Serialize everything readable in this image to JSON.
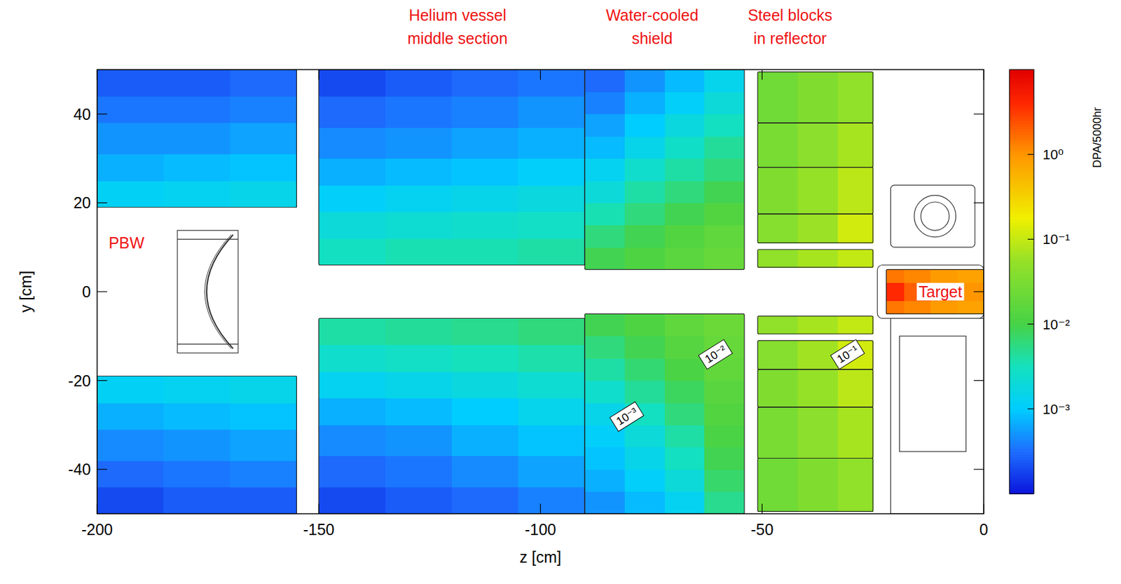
{
  "chart_data": {
    "type": "heatmap",
    "x_label": "z [cm]",
    "y_label": "y [cm]",
    "xlim": [
      -200,
      0
    ],
    "ylim": [
      -50,
      50
    ],
    "xticks": [
      -200,
      -150,
      -100,
      -50,
      0
    ],
    "yticks": [
      -40,
      -20,
      0,
      20,
      40
    ],
    "colorbar": {
      "label": "DPA/5000hr",
      "log": true,
      "lim": [
        0.0001,
        10
      ],
      "ticks": [
        {
          "value": 0.001,
          "label": "10⁻³"
        },
        {
          "value": 0.01,
          "label": "10⁻²"
        },
        {
          "value": 0.1,
          "label": "10⁻¹"
        },
        {
          "value": 1,
          "label": "10⁰"
        }
      ]
    },
    "annotations": [
      {
        "text": "Helium vessel middle section",
        "z": -118.7
      },
      {
        "text": "Water-cooled shield",
        "z": -74.8
      },
      {
        "text": "Steel blocks in reflector",
        "z": -43.7
      }
    ],
    "labels": [
      {
        "text": "PBW",
        "z": -197.4,
        "y": 11
      },
      {
        "text": "Target",
        "z": -14.7,
        "y": 0
      }
    ],
    "contour_labels": [
      {
        "value": 0.01,
        "label": "10⁻²",
        "z": -60.6,
        "y": -14
      },
      {
        "value": 0.1,
        "label": "10⁻¹",
        "z": -30.8,
        "y": -14
      },
      {
        "value": 0.001,
        "label": "10⁻³",
        "z": -80.6,
        "y": -28
      }
    ],
    "cells": [
      {
        "z": [
          -200,
          -185,
          -170,
          -155
        ],
        "y": [
          19,
          25,
          31,
          38,
          44,
          50
        ],
        "values": [
          [
            0.0012,
            0.0013,
            0.0015
          ],
          [
            0.0007,
            0.0008,
            0.0009
          ],
          [
            0.0005,
            0.0005,
            0.0006
          ],
          [
            0.00035,
            0.00035,
            0.0004
          ],
          [
            0.00025,
            0.00025,
            0.0003
          ]
        ]
      },
      {
        "z": [
          -200,
          -185,
          -170,
          -155
        ],
        "y": [
          -50,
          -44,
          -38,
          -31,
          -25,
          -19
        ],
        "values": [
          [
            0.0002,
            0.00025,
            0.00025
          ],
          [
            0.0003,
            0.00035,
            0.0004
          ],
          [
            0.00045,
            0.0005,
            0.0006
          ],
          [
            0.0007,
            0.0008,
            0.0009
          ],
          [
            0.0012,
            0.0013,
            0.0015
          ]
        ]
      },
      {
        "z": [
          -150,
          -135,
          -120,
          -105,
          -90
        ],
        "y": [
          6,
          12,
          18,
          24,
          30,
          37,
          44,
          50
        ],
        "values": [
          [
            0.003,
            0.0035,
            0.0035,
            0.004
          ],
          [
            0.002,
            0.0022,
            0.0025,
            0.0028
          ],
          [
            0.0011,
            0.0013,
            0.0015,
            0.0018
          ],
          [
            0.0007,
            0.0008,
            0.0009,
            0.0011
          ],
          [
            0.00045,
            0.0005,
            0.0006,
            0.0007
          ],
          [
            0.0003,
            0.00035,
            0.0004,
            0.0005
          ],
          [
            0.0002,
            0.00025,
            0.0003,
            0.00035
          ]
        ]
      },
      {
        "z": [
          -150,
          -135,
          -120,
          -105,
          -90
        ],
        "y": [
          -50,
          -44,
          -37,
          -30,
          -24,
          -18,
          -12,
          -6
        ],
        "values": [
          [
            0.0002,
            0.00025,
            0.0003,
            0.0004
          ],
          [
            0.0003,
            0.00035,
            0.00045,
            0.0006
          ],
          [
            0.00045,
            0.0005,
            0.0007,
            0.0009
          ],
          [
            0.0007,
            0.0008,
            0.001,
            0.0014
          ],
          [
            0.0013,
            0.0015,
            0.0018,
            0.0022
          ],
          [
            0.0025,
            0.0028,
            0.0032,
            0.0038
          ],
          [
            0.004,
            0.0045,
            0.005,
            0.006
          ]
        ]
      },
      {
        "z": [
          -90,
          -81,
          -72,
          -63,
          -54
        ],
        "y": [
          5,
          10,
          15,
          20,
          25,
          30,
          35,
          40,
          45,
          50
        ],
        "values": [
          [
            0.009,
            0.012,
            0.016,
            0.02
          ],
          [
            0.006,
            0.009,
            0.013,
            0.017
          ],
          [
            0.0035,
            0.006,
            0.009,
            0.013
          ],
          [
            0.002,
            0.004,
            0.006,
            0.009
          ],
          [
            0.0013,
            0.0025,
            0.004,
            0.006
          ],
          [
            0.0008,
            0.0015,
            0.0027,
            0.0045
          ],
          [
            0.0006,
            0.001,
            0.0018,
            0.003
          ],
          [
            0.0004,
            0.0007,
            0.0011,
            0.002
          ],
          [
            0.0003,
            0.0005,
            0.0008,
            0.0014
          ]
        ]
      },
      {
        "z": [
          -90,
          -81,
          -72,
          -63,
          -54
        ],
        "y": [
          -50,
          -45,
          -40,
          -35,
          -30,
          -25,
          -20,
          -15,
          -10,
          -5
        ],
        "values": [
          [
            0.0005,
            0.0008,
            0.0013,
            0.005
          ],
          [
            0.0007,
            0.0011,
            0.002,
            0.007
          ],
          [
            0.0009,
            0.0015,
            0.003,
            0.009
          ],
          [
            0.0011,
            0.002,
            0.004,
            0.011
          ],
          [
            0.0015,
            0.003,
            0.006,
            0.013
          ],
          [
            0.0025,
            0.0045,
            0.008,
            0.015
          ],
          [
            0.004,
            0.0065,
            0.011,
            0.018
          ],
          [
            0.006,
            0.009,
            0.014,
            0.02
          ],
          [
            0.009,
            0.012,
            0.017,
            0.022
          ]
        ]
      },
      {
        "z": [
          -51,
          -42,
          -33,
          -25
        ],
        "y": [
          5.5,
          9.5
        ],
        "values": [
          [
            0.05,
            0.07,
            0.1
          ]
        ]
      },
      {
        "z": [
          -51,
          -42,
          -33,
          -25
        ],
        "y": [
          11,
          17.5
        ],
        "values": [
          [
            0.04,
            0.06,
            0.12
          ]
        ]
      },
      {
        "z": [
          -51,
          -42,
          -33,
          -25
        ],
        "y": [
          17.5,
          28
        ],
        "values": [
          [
            0.035,
            0.055,
            0.09
          ]
        ]
      },
      {
        "z": [
          -51,
          -42,
          -33,
          -25
        ],
        "y": [
          28,
          38
        ],
        "values": [
          [
            0.03,
            0.045,
            0.07
          ]
        ]
      },
      {
        "z": [
          -51,
          -42,
          -33,
          -25
        ],
        "y": [
          38,
          49.5
        ],
        "values": [
          [
            0.025,
            0.035,
            0.05
          ]
        ]
      },
      {
        "z": [
          -51,
          -42,
          -33,
          -25
        ],
        "y": [
          -9.5,
          -5.5
        ],
        "values": [
          [
            0.05,
            0.07,
            0.1
          ]
        ]
      },
      {
        "z": [
          -51,
          -42,
          -33,
          -25
        ],
        "y": [
          -17.5,
          -11
        ],
        "values": [
          [
            0.04,
            0.065,
            0.12
          ]
        ]
      },
      {
        "z": [
          -51,
          -42,
          -33,
          -25
        ],
        "y": [
          -26,
          -17.5
        ],
        "values": [
          [
            0.035,
            0.055,
            0.09
          ]
        ]
      },
      {
        "z": [
          -51,
          -42,
          -33,
          -25
        ],
        "y": [
          -37.5,
          -26
        ],
        "values": [
          [
            0.03,
            0.045,
            0.07
          ]
        ]
      },
      {
        "z": [
          -51,
          -42,
          -33,
          -25
        ],
        "y": [
          -49.5,
          -37.5
        ],
        "values": [
          [
            0.025,
            0.035,
            0.05
          ]
        ]
      },
      {
        "z": [
          -22,
          -18,
          -12,
          -6,
          0
        ],
        "y": [
          -5,
          -2,
          2,
          5
        ],
        "values": [
          [
            1.5,
            1.2,
            0.9,
            0.8
          ],
          [
            4,
            2,
            1.2,
            1
          ],
          [
            1.5,
            1.2,
            0.9,
            0.8
          ]
        ]
      }
    ]
  }
}
